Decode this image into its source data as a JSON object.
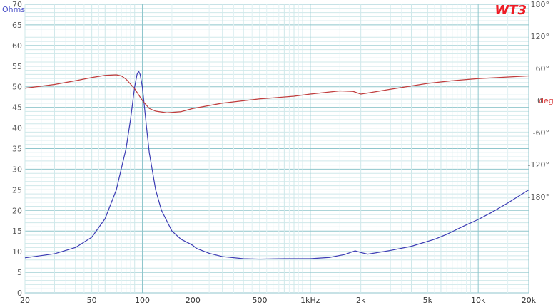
{
  "chart_data": {
    "type": "line",
    "brand": "WT3",
    "y_left_unit": "Ohms",
    "y_right_unit": "deg",
    "x_scale": "log",
    "xlim": [
      20,
      20000
    ],
    "ylim_left": [
      0,
      70
    ],
    "ylim_right": [
      -360,
      180
    ],
    "grid": true,
    "x_ticks": [
      {
        "value": 20,
        "label": "20"
      },
      {
        "value": 50,
        "label": "50"
      },
      {
        "value": 100,
        "label": "100"
      },
      {
        "value": 200,
        "label": "200"
      },
      {
        "value": 500,
        "label": "500"
      },
      {
        "value": 1000,
        "label": "1kHz"
      },
      {
        "value": 2000,
        "label": "2k"
      },
      {
        "value": 5000,
        "label": "5k"
      },
      {
        "value": 10000,
        "label": "10k"
      },
      {
        "value": 20000,
        "label": "20k"
      }
    ],
    "y_left_ticks": [
      0,
      5,
      10,
      15,
      20,
      25,
      30,
      35,
      40,
      45,
      50,
      55,
      60,
      65,
      70
    ],
    "y_right_ticks": [
      {
        "value": 180,
        "label": "180°"
      },
      {
        "value": 120,
        "label": "120°"
      },
      {
        "value": 60,
        "label": "60°"
      },
      {
        "value": 0,
        "label": "0"
      },
      {
        "value": -60,
        "label": "-60°"
      },
      {
        "value": -120,
        "label": "-120°"
      },
      {
        "value": -180,
        "label": "-180°"
      }
    ],
    "series": [
      {
        "axis": "left",
        "color": "#3c3cb4",
        "x": [
          20,
          30,
          40,
          50,
          60,
          70,
          80,
          85,
          90,
          93,
          95,
          97,
          100,
          103,
          106,
          110,
          120,
          130,
          150,
          170,
          190,
          200,
          210,
          250,
          300,
          400,
          500,
          700,
          1000,
          1300,
          1600,
          1850,
          2000,
          2200,
          3000,
          4000,
          5000,
          5500,
          6500,
          8000,
          10000,
          12000,
          15000,
          20000
        ],
        "y": [
          8.5,
          9.5,
          11,
          13.5,
          18,
          25,
          35,
          42,
          50,
          53,
          53.8,
          53,
          50,
          45,
          40,
          34,
          25,
          20,
          15,
          13,
          12,
          11.5,
          10.8,
          9.6,
          8.8,
          8.3,
          8.2,
          8.3,
          8.3,
          8.6,
          9.3,
          10.2,
          9.8,
          9.4,
          10.3,
          11.3,
          12.5,
          13,
          14.2,
          16,
          17.8,
          19.5,
          21.8,
          25
        ]
      },
      {
        "axis": "right",
        "color": "#c03c3c",
        "x": [
          20,
          30,
          40,
          50,
          60,
          70,
          75,
          80,
          90,
          100,
          110,
          120,
          140,
          170,
          200,
          300,
          500,
          800,
          1000,
          1500,
          1800,
          2000,
          2200,
          3000,
          5000,
          7000,
          10000,
          20000
        ],
        "y": [
          23,
          30,
          37,
          43,
          47,
          48,
          46,
          40,
          22,
          0,
          -15,
          -20,
          -23,
          -21,
          -15,
          -5,
          3,
          8,
          12,
          18,
          17,
          12,
          14,
          21,
          32,
          37,
          41,
          46
        ]
      }
    ]
  }
}
